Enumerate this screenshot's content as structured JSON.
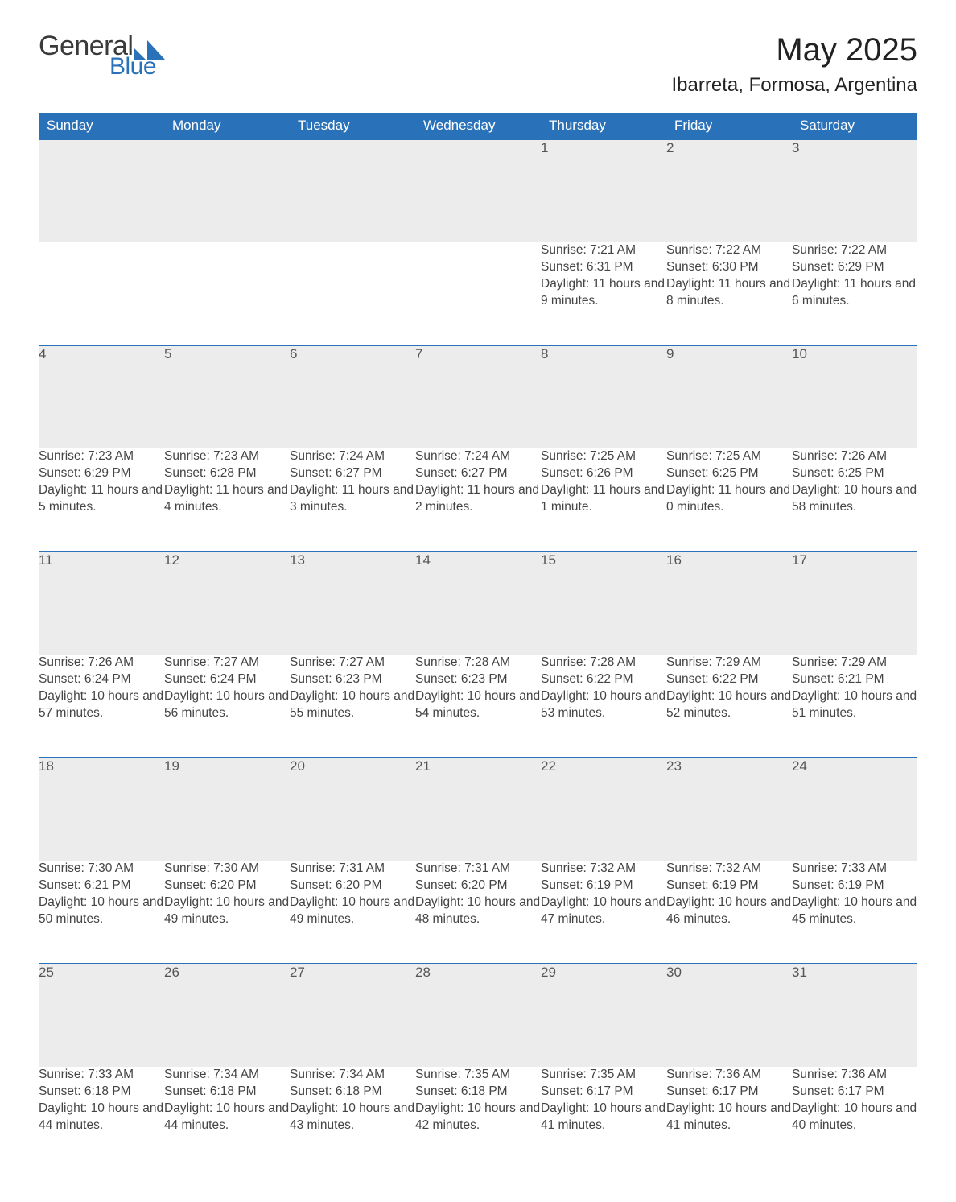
{
  "logo": {
    "word1": "General",
    "word2": "Blue",
    "color_text": "#3a3a3a",
    "color_blue": "#2971b8"
  },
  "title": {
    "month_year": "May 2025",
    "location": "Ibarreta, Formosa, Argentina"
  },
  "styling": {
    "header_bg": "#2971b8",
    "header_text": "#ffffff",
    "daynum_bg": "#ececec",
    "week_rule_color": "#2971b8",
    "body_text_color": "#444444",
    "page_bg": "#ffffff",
    "font_family": "Segoe UI",
    "th_fontsize": 17,
    "daynum_fontsize": 17,
    "cell_fontsize": 15.5,
    "title_fontsize": 40,
    "location_fontsize": 24
  },
  "weekdays": [
    "Sunday",
    "Monday",
    "Tuesday",
    "Wednesday",
    "Thursday",
    "Friday",
    "Saturday"
  ],
  "weeks": [
    [
      null,
      null,
      null,
      null,
      {
        "n": "1",
        "sr": "Sunrise: 7:21 AM",
        "ss": "Sunset: 6:31 PM",
        "dl": "Daylight: 11 hours and 9 minutes."
      },
      {
        "n": "2",
        "sr": "Sunrise: 7:22 AM",
        "ss": "Sunset: 6:30 PM",
        "dl": "Daylight: 11 hours and 8 minutes."
      },
      {
        "n": "3",
        "sr": "Sunrise: 7:22 AM",
        "ss": "Sunset: 6:29 PM",
        "dl": "Daylight: 11 hours and 6 minutes."
      }
    ],
    [
      {
        "n": "4",
        "sr": "Sunrise: 7:23 AM",
        "ss": "Sunset: 6:29 PM",
        "dl": "Daylight: 11 hours and 5 minutes."
      },
      {
        "n": "5",
        "sr": "Sunrise: 7:23 AM",
        "ss": "Sunset: 6:28 PM",
        "dl": "Daylight: 11 hours and 4 minutes."
      },
      {
        "n": "6",
        "sr": "Sunrise: 7:24 AM",
        "ss": "Sunset: 6:27 PM",
        "dl": "Daylight: 11 hours and 3 minutes."
      },
      {
        "n": "7",
        "sr": "Sunrise: 7:24 AM",
        "ss": "Sunset: 6:27 PM",
        "dl": "Daylight: 11 hours and 2 minutes."
      },
      {
        "n": "8",
        "sr": "Sunrise: 7:25 AM",
        "ss": "Sunset: 6:26 PM",
        "dl": "Daylight: 11 hours and 1 minute."
      },
      {
        "n": "9",
        "sr": "Sunrise: 7:25 AM",
        "ss": "Sunset: 6:25 PM",
        "dl": "Daylight: 11 hours and 0 minutes."
      },
      {
        "n": "10",
        "sr": "Sunrise: 7:26 AM",
        "ss": "Sunset: 6:25 PM",
        "dl": "Daylight: 10 hours and 58 minutes."
      }
    ],
    [
      {
        "n": "11",
        "sr": "Sunrise: 7:26 AM",
        "ss": "Sunset: 6:24 PM",
        "dl": "Daylight: 10 hours and 57 minutes."
      },
      {
        "n": "12",
        "sr": "Sunrise: 7:27 AM",
        "ss": "Sunset: 6:24 PM",
        "dl": "Daylight: 10 hours and 56 minutes."
      },
      {
        "n": "13",
        "sr": "Sunrise: 7:27 AM",
        "ss": "Sunset: 6:23 PM",
        "dl": "Daylight: 10 hours and 55 minutes."
      },
      {
        "n": "14",
        "sr": "Sunrise: 7:28 AM",
        "ss": "Sunset: 6:23 PM",
        "dl": "Daylight: 10 hours and 54 minutes."
      },
      {
        "n": "15",
        "sr": "Sunrise: 7:28 AM",
        "ss": "Sunset: 6:22 PM",
        "dl": "Daylight: 10 hours and 53 minutes."
      },
      {
        "n": "16",
        "sr": "Sunrise: 7:29 AM",
        "ss": "Sunset: 6:22 PM",
        "dl": "Daylight: 10 hours and 52 minutes."
      },
      {
        "n": "17",
        "sr": "Sunrise: 7:29 AM",
        "ss": "Sunset: 6:21 PM",
        "dl": "Daylight: 10 hours and 51 minutes."
      }
    ],
    [
      {
        "n": "18",
        "sr": "Sunrise: 7:30 AM",
        "ss": "Sunset: 6:21 PM",
        "dl": "Daylight: 10 hours and 50 minutes."
      },
      {
        "n": "19",
        "sr": "Sunrise: 7:30 AM",
        "ss": "Sunset: 6:20 PM",
        "dl": "Daylight: 10 hours and 49 minutes."
      },
      {
        "n": "20",
        "sr": "Sunrise: 7:31 AM",
        "ss": "Sunset: 6:20 PM",
        "dl": "Daylight: 10 hours and 49 minutes."
      },
      {
        "n": "21",
        "sr": "Sunrise: 7:31 AM",
        "ss": "Sunset: 6:20 PM",
        "dl": "Daylight: 10 hours and 48 minutes."
      },
      {
        "n": "22",
        "sr": "Sunrise: 7:32 AM",
        "ss": "Sunset: 6:19 PM",
        "dl": "Daylight: 10 hours and 47 minutes."
      },
      {
        "n": "23",
        "sr": "Sunrise: 7:32 AM",
        "ss": "Sunset: 6:19 PM",
        "dl": "Daylight: 10 hours and 46 minutes."
      },
      {
        "n": "24",
        "sr": "Sunrise: 7:33 AM",
        "ss": "Sunset: 6:19 PM",
        "dl": "Daylight: 10 hours and 45 minutes."
      }
    ],
    [
      {
        "n": "25",
        "sr": "Sunrise: 7:33 AM",
        "ss": "Sunset: 6:18 PM",
        "dl": "Daylight: 10 hours and 44 minutes."
      },
      {
        "n": "26",
        "sr": "Sunrise: 7:34 AM",
        "ss": "Sunset: 6:18 PM",
        "dl": "Daylight: 10 hours and 44 minutes."
      },
      {
        "n": "27",
        "sr": "Sunrise: 7:34 AM",
        "ss": "Sunset: 6:18 PM",
        "dl": "Daylight: 10 hours and 43 minutes."
      },
      {
        "n": "28",
        "sr": "Sunrise: 7:35 AM",
        "ss": "Sunset: 6:18 PM",
        "dl": "Daylight: 10 hours and 42 minutes."
      },
      {
        "n": "29",
        "sr": "Sunrise: 7:35 AM",
        "ss": "Sunset: 6:17 PM",
        "dl": "Daylight: 10 hours and 41 minutes."
      },
      {
        "n": "30",
        "sr": "Sunrise: 7:36 AM",
        "ss": "Sunset: 6:17 PM",
        "dl": "Daylight: 10 hours and 41 minutes."
      },
      {
        "n": "31",
        "sr": "Sunrise: 7:36 AM",
        "ss": "Sunset: 6:17 PM",
        "dl": "Daylight: 10 hours and 40 minutes."
      }
    ]
  ]
}
